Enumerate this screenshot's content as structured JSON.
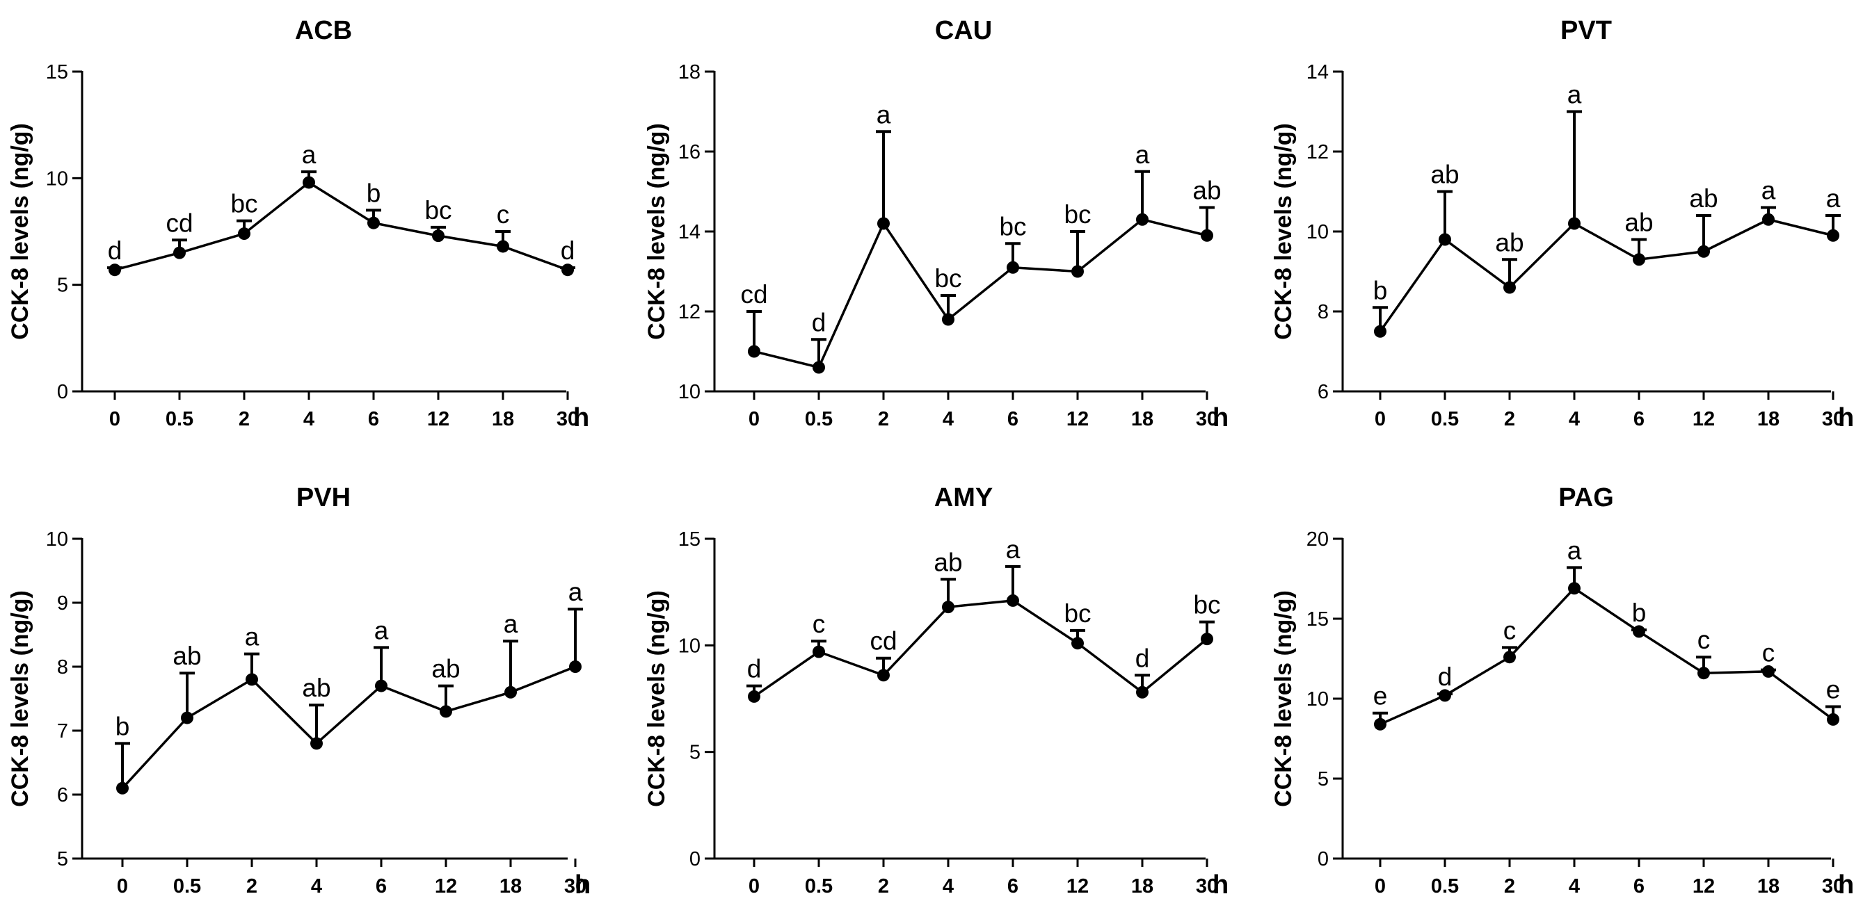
{
  "chart_data": [
    {
      "type": "line",
      "title": "ACB",
      "ylabel": "CCK-8 levels (ng/g)",
      "xlabel": "h",
      "categories": [
        "0",
        "0.5",
        "2",
        "4",
        "6",
        "12",
        "18",
        "30"
      ],
      "values": [
        5.7,
        6.5,
        7.4,
        9.8,
        7.9,
        7.3,
        6.8,
        5.7
      ],
      "error_upper": [
        0.1,
        0.6,
        0.6,
        0.5,
        0.6,
        0.4,
        0.7,
        0.1
      ],
      "letters": [
        "d",
        "cd",
        "bc",
        "a",
        "b",
        "bc",
        "c",
        "d"
      ],
      "ylim": [
        0,
        15
      ],
      "yticks": [
        "0",
        "5",
        "10",
        "15"
      ]
    },
    {
      "type": "line",
      "title": "CAU",
      "ylabel": "CCK-8 levels (ng/g)",
      "xlabel": "h",
      "categories": [
        "0",
        "0.5",
        "2",
        "4",
        "6",
        "12",
        "18",
        "30"
      ],
      "values": [
        11.0,
        10.6,
        14.2,
        11.8,
        13.1,
        13.0,
        14.3,
        13.9
      ],
      "error_upper": [
        1.0,
        0.7,
        2.3,
        0.6,
        0.6,
        1.0,
        1.2,
        0.7
      ],
      "letters": [
        "cd",
        "d",
        "a",
        "bc",
        "bc",
        "bc",
        "a",
        "ab"
      ],
      "ylim": [
        10,
        18
      ],
      "yticks": [
        "10",
        "12",
        "14",
        "16",
        "18"
      ]
    },
    {
      "type": "line",
      "title": "PVT",
      "ylabel": "CCK-8 levels (ng/g)",
      "xlabel": "h",
      "categories": [
        "0",
        "0.5",
        "2",
        "4",
        "6",
        "12",
        "18",
        "30"
      ],
      "values": [
        7.5,
        9.8,
        8.6,
        10.2,
        9.3,
        9.5,
        10.3,
        9.9
      ],
      "error_upper": [
        0.6,
        1.2,
        0.7,
        2.8,
        0.5,
        0.9,
        0.3,
        0.5
      ],
      "letters": [
        "b",
        "ab",
        "ab",
        "a",
        "ab",
        "ab",
        "a",
        "a"
      ],
      "ylim": [
        6,
        14
      ],
      "yticks": [
        "6",
        "8",
        "10",
        "12",
        "14"
      ]
    },
    {
      "type": "line",
      "title": "PVH",
      "ylabel": "CCK-8 levels (ng/g)",
      "xlabel": "h",
      "categories": [
        "0",
        "0.5",
        "2",
        "4",
        "6",
        "12",
        "18",
        "30"
      ],
      "values": [
        6.1,
        7.2,
        7.8,
        6.8,
        7.7,
        7.3,
        7.6,
        8.0
      ],
      "error_upper": [
        0.7,
        0.7,
        0.4,
        0.6,
        0.6,
        0.4,
        0.8,
        0.9
      ],
      "letters": [
        "b",
        "ab",
        "a",
        "ab",
        "a",
        "ab",
        "a",
        "a"
      ],
      "ylim": [
        5,
        10
      ],
      "yticks": [
        "5",
        "6",
        "7",
        "8",
        "9",
        "10"
      ]
    },
    {
      "type": "line",
      "title": "AMY",
      "ylabel": "CCK-8 levels (ng/g)",
      "xlabel": "h",
      "categories": [
        "0",
        "0.5",
        "2",
        "4",
        "6",
        "12",
        "18",
        "30"
      ],
      "values": [
        7.6,
        9.7,
        8.6,
        11.8,
        12.1,
        10.1,
        7.8,
        10.3
      ],
      "error_upper": [
        0.5,
        0.5,
        0.8,
        1.3,
        1.6,
        0.6,
        0.8,
        0.8
      ],
      "letters": [
        "d",
        "c",
        "cd",
        "ab",
        "a",
        "bc",
        "d",
        "bc"
      ],
      "ylim": [
        0,
        15
      ],
      "yticks": [
        "0",
        "5",
        "10",
        "15"
      ]
    },
    {
      "type": "line",
      "title": "PAG",
      "ylabel": "CCK-8 levels (ng/g)",
      "xlabel": "h",
      "categories": [
        "0",
        "0.5",
        "2",
        "4",
        "6",
        "12",
        "18",
        "30"
      ],
      "values": [
        8.4,
        10.2,
        12.6,
        16.9,
        14.2,
        11.6,
        11.7,
        8.7
      ],
      "error_upper": [
        0.7,
        0.1,
        0.6,
        1.3,
        0.1,
        1.0,
        0.1,
        0.8
      ],
      "letters": [
        "e",
        "d",
        "c",
        "a",
        "b",
        "c",
        "c",
        "e"
      ],
      "ylim": [
        0,
        20
      ],
      "yticks": [
        "0",
        "5",
        "10",
        "15",
        "20"
      ]
    }
  ]
}
